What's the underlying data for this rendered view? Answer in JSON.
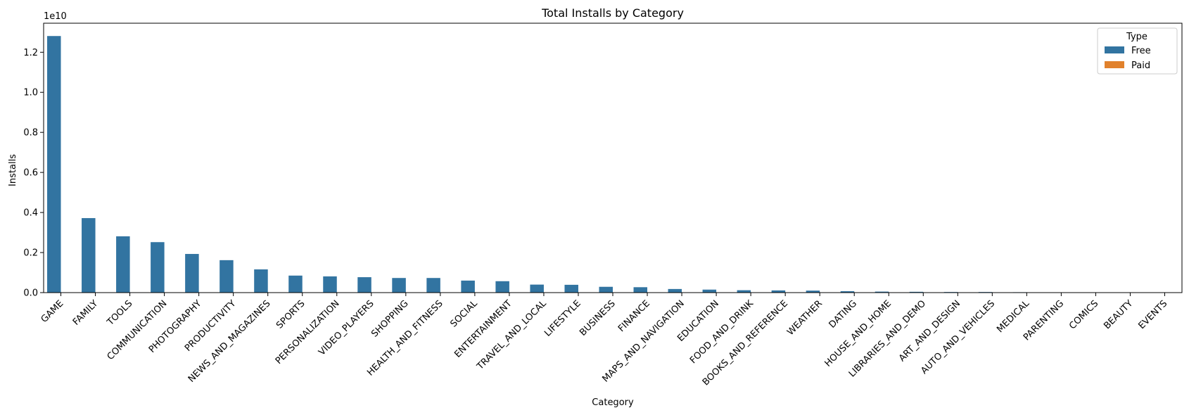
{
  "chart_data": {
    "type": "bar",
    "title": "Total Installs by Category",
    "xlabel": "Category",
    "ylabel": "Installs",
    "y_multiplier_label": "1e10",
    "y_scale": 10000000000,
    "ylim": [
      0,
      1.345
    ],
    "yticks": [
      0.0,
      0.2,
      0.4,
      0.6,
      0.8,
      1.0,
      1.2
    ],
    "ytick_labels": [
      "0.0",
      "0.2",
      "0.4",
      "0.6",
      "0.8",
      "1.0",
      "1.2"
    ],
    "grid": false,
    "legend": {
      "title": "Type",
      "placement": "top-right"
    },
    "categories": [
      "GAME",
      "FAMILY",
      "TOOLS",
      "COMMUNICATION",
      "PHOTOGRAPHY",
      "PRODUCTIVITY",
      "NEWS_AND_MAGAZINES",
      "SPORTS",
      "PERSONALIZATION",
      "VIDEO_PLAYERS",
      "SHOPPING",
      "HEALTH_AND_FITNESS",
      "SOCIAL",
      "ENTERTAINMENT",
      "TRAVEL_AND_LOCAL",
      "LIFESTYLE",
      "BUSINESS",
      "FINANCE",
      "MAPS_AND_NAVIGATION",
      "EDUCATION",
      "FOOD_AND_DRINK",
      "BOOKS_AND_REFERENCE",
      "WEATHER",
      "DATING",
      "HOUSE_AND_HOME",
      "LIBRARIES_AND_DEMO",
      "ART_AND_DESIGN",
      "AUTO_AND_VEHICLES",
      "MEDICAL",
      "PARENTING",
      "COMICS",
      "BEAUTY",
      "EVENTS"
    ],
    "series": [
      {
        "name": "Free",
        "color": "#3274a1",
        "values": [
          1.281,
          0.372,
          0.281,
          0.252,
          0.193,
          0.162,
          0.116,
          0.085,
          0.081,
          0.077,
          0.073,
          0.073,
          0.06,
          0.057,
          0.04,
          0.039,
          0.029,
          0.027,
          0.018,
          0.015,
          0.012,
          0.011,
          0.01,
          0.007,
          0.005,
          0.004,
          0.003,
          0.003,
          0.002,
          0.001,
          0.001,
          0.001,
          0.0005
        ]
      },
      {
        "name": "Paid",
        "color": "#e1812c",
        "values": [
          0.0005,
          0.0005,
          0.0003,
          0.0001,
          0.0001,
          0.0001,
          0.0,
          0.0001,
          0.0002,
          0.0,
          0.0,
          0.0001,
          0.0,
          0.0,
          0.0,
          0.0,
          0.0,
          0.0,
          0.0001,
          0.0,
          0.0,
          0.0001,
          0.0001,
          0.0,
          0.0,
          0.0,
          0.0,
          0.0,
          0.0,
          0.0,
          0.0,
          0.0,
          0.0
        ]
      }
    ]
  }
}
